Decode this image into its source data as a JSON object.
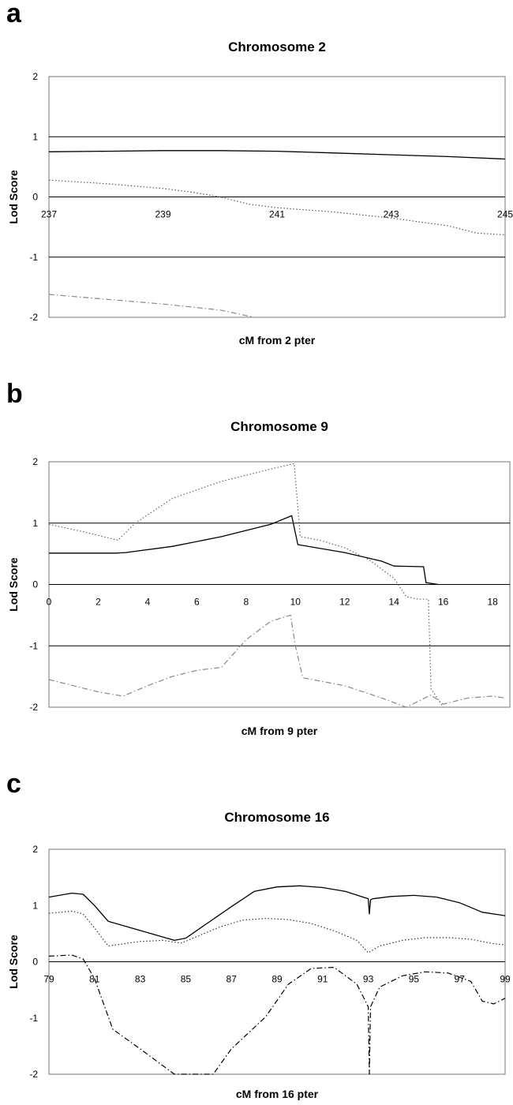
{
  "chart_data": [
    {
      "type": "line",
      "panel_label": "a",
      "title": "Chromosome 2",
      "xlabel": "cM from 2 pter",
      "ylabel": "Lod Score",
      "xlim": [
        237,
        245
      ],
      "ylim": [
        -2,
        2
      ],
      "xticks": [
        "237",
        "239",
        "241",
        "243",
        "245"
      ],
      "yticks": [
        "2",
        "1",
        "0",
        "-1",
        "-2"
      ],
      "grid": "horizontal at 1, 0, -1",
      "series": [
        {
          "style": "solid",
          "color": "#000000",
          "x": [
            237,
            238,
            239,
            240,
            241,
            242,
            243,
            244,
            245
          ],
          "y": [
            0.75,
            0.76,
            0.77,
            0.77,
            0.76,
            0.73,
            0.7,
            0.67,
            0.63
          ]
        },
        {
          "style": "dotted",
          "color": "#555555",
          "x": [
            237,
            238,
            239,
            239.5,
            240,
            240.5,
            241,
            242,
            243,
            244,
            244.5,
            245
          ],
          "y": [
            0.28,
            0.22,
            0.14,
            0.08,
            0.0,
            -0.12,
            -0.18,
            -0.25,
            -0.35,
            -0.48,
            -0.6,
            -0.63
          ]
        },
        {
          "style": "dash-dot",
          "color": "#888888",
          "x": [
            237,
            238,
            239,
            240,
            240.6
          ],
          "y": [
            -1.62,
            -1.7,
            -1.78,
            -1.88,
            -2.0
          ]
        }
      ]
    },
    {
      "type": "line",
      "panel_label": "b",
      "title": "Chromosome 9",
      "xlabel": "cM from 9 pter",
      "ylabel": "Lod Score",
      "xlim": [
        0,
        18.7
      ],
      "ylim": [
        -2,
        2
      ],
      "xticks": [
        "0",
        "2",
        "4",
        "6",
        "8",
        "10",
        "12",
        "14",
        "16",
        "18"
      ],
      "yticks": [
        "2",
        "1",
        "0",
        "-1",
        "-2"
      ],
      "grid": "horizontal at 1, 0, -1",
      "series": [
        {
          "style": "solid",
          "color": "#000000",
          "x": [
            0,
            2.7,
            3.1,
            5,
            7,
            9,
            9.85,
            10.1,
            12,
            13.5,
            14,
            15.2,
            15.3,
            15.8
          ],
          "y": [
            0.51,
            0.51,
            0.52,
            0.62,
            0.78,
            0.98,
            1.12,
            0.65,
            0.52,
            0.38,
            0.3,
            0.29,
            0.03,
            0.0
          ]
        },
        {
          "style": "dotted",
          "color": "#666666",
          "x": [
            0,
            1.5,
            2.8,
            3.5,
            5,
            7,
            9,
            9.95,
            10.2,
            11,
            12,
            13,
            14,
            14.5,
            15,
            15.4,
            15.5,
            16
          ],
          "y": [
            0.98,
            0.85,
            0.72,
            1.0,
            1.4,
            1.68,
            1.88,
            1.97,
            0.78,
            0.72,
            0.6,
            0.4,
            0.1,
            -0.2,
            -0.24,
            -0.24,
            -1.7,
            -2.0
          ]
        },
        {
          "style": "dash-dot",
          "color": "#888888",
          "x": [
            0,
            1,
            2,
            3,
            4,
            5,
            6,
            7,
            8,
            9,
            9.8,
            10,
            10.3,
            12,
            13.5,
            14.5,
            15.5,
            16,
            17,
            18,
            18.5
          ],
          "y": [
            -1.55,
            -1.65,
            -1.75,
            -1.82,
            -1.65,
            -1.5,
            -1.4,
            -1.35,
            -0.9,
            -0.6,
            -0.5,
            -1.0,
            -1.52,
            -1.65,
            -1.85,
            -2.0,
            -1.8,
            -1.95,
            -1.85,
            -1.82,
            -1.85
          ]
        }
      ]
    },
    {
      "type": "line",
      "panel_label": "c",
      "title": "Chromosome 16",
      "xlabel": "cM from 16 pter",
      "ylabel": "Lod Score",
      "xlim": [
        79,
        99
      ],
      "ylim": [
        -2,
        2
      ],
      "xticks": [
        "79",
        "81",
        "83",
        "85",
        "87",
        "89",
        "91",
        "93",
        "95",
        "97",
        "99"
      ],
      "yticks": [
        "2",
        "1",
        "0",
        "-1",
        "-2"
      ],
      "grid": "horizontal at 0",
      "series": [
        {
          "style": "solid",
          "color": "#000000",
          "x": [
            79,
            80,
            80.5,
            81,
            81.6,
            84.5,
            85,
            86,
            87,
            88,
            89,
            90,
            91,
            92,
            93,
            93.05,
            93.1,
            93.2,
            94,
            95,
            96,
            97,
            98,
            99
          ],
          "y": [
            1.15,
            1.22,
            1.2,
            1.0,
            0.72,
            0.38,
            0.42,
            0.7,
            0.98,
            1.25,
            1.33,
            1.35,
            1.32,
            1.25,
            1.12,
            0.85,
            1.1,
            1.12,
            1.16,
            1.18,
            1.15,
            1.05,
            0.88,
            0.82
          ]
        },
        {
          "style": "dotted",
          "color": "#333333",
          "x": [
            79,
            80,
            80.5,
            81,
            81.6,
            83,
            84,
            84.8,
            85.5,
            86.5,
            87.5,
            88.5,
            89.5,
            90.5,
            91.5,
            92.5,
            93,
            93.5,
            94.5,
            95.5,
            96.5,
            97.5,
            98.5,
            99
          ],
          "y": [
            0.86,
            0.9,
            0.85,
            0.6,
            0.28,
            0.36,
            0.38,
            0.33,
            0.45,
            0.62,
            0.74,
            0.77,
            0.75,
            0.68,
            0.55,
            0.38,
            0.16,
            0.28,
            0.38,
            0.43,
            0.43,
            0.4,
            0.32,
            0.3
          ]
        },
        {
          "style": "dash-dot",
          "color": "#000000",
          "x": [
            79,
            80,
            80.5,
            81,
            81.8,
            83,
            84.5,
            86.2,
            87,
            88.5,
            89.5,
            90.5,
            91.5,
            92.5,
            93,
            93.05,
            93.1,
            93.5,
            94.5,
            95.5,
            96.5,
            97.5,
            98,
            98.5,
            99
          ],
          "y": [
            0.1,
            0.12,
            0.05,
            -0.3,
            -1.2,
            -1.55,
            -2.0,
            -2.0,
            -1.55,
            -0.98,
            -0.4,
            -0.12,
            -0.1,
            -0.4,
            -0.8,
            -2.0,
            -0.8,
            -0.45,
            -0.25,
            -0.18,
            -0.2,
            -0.35,
            -0.7,
            -0.75,
            -0.65
          ]
        }
      ]
    }
  ]
}
